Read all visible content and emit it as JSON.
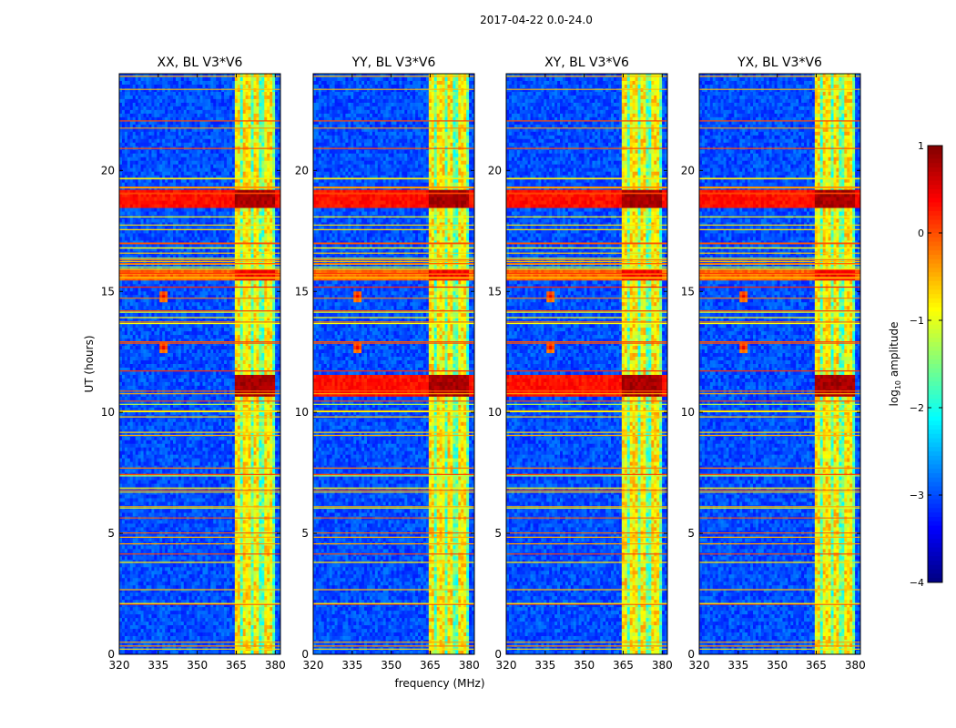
{
  "chart_data": {
    "type": "heatmap",
    "title": "2017-04-22 0.0-24.0",
    "xlabel": "frequency (MHz)",
    "ylabel": "UT (hours)",
    "xlim": [
      320,
      382
    ],
    "ylim": [
      0,
      24
    ],
    "xticks": [
      "320",
      "335",
      "350",
      "365",
      "380"
    ],
    "yticks": [
      "0",
      "5",
      "10",
      "15",
      "20"
    ],
    "colorbar": {
      "label_prefix": "log",
      "label_sub": "10",
      "label_suffix": " amplitude",
      "range": [
        -4,
        1
      ],
      "ticks": [
        "1",
        "0",
        "−1",
        "−2",
        "−3",
        "−4"
      ],
      "colormap": "jet"
    },
    "panels": [
      {
        "title": "XX, BL V3*V6",
        "pol": "XX",
        "baseline": "V3*V6"
      },
      {
        "title": "YY, BL V3*V6",
        "pol": "YY",
        "baseline": "V3*V6"
      },
      {
        "title": "XY, BL V3*V6",
        "pol": "XY",
        "baseline": "V3*V6"
      },
      {
        "title": "YX, BL V3*V6",
        "pol": "YX",
        "baseline": "V3*V6"
      }
    ],
    "features": {
      "background_log_amplitude": -3,
      "bright_band_mhz": [
        364,
        380
      ],
      "bright_band_log_amplitude": -0.8,
      "strong_rfi_ut_hours": [
        {
          "ut": [
            18.5,
            19.2
          ],
          "log_amplitude": 0.6
        },
        {
          "ut": [
            15.4,
            15.9
          ],
          "log_amplitude": 0.2
        },
        {
          "ut": [
            10.7,
            11.6
          ],
          "log_amplitude": 0.6
        }
      ],
      "narrowband_rfi_channels_mhz": [
        367,
        371,
        375,
        379.5
      ],
      "bursts": [
        {
          "freq_mhz": 337,
          "ut": 14.8
        },
        {
          "freq_mhz": 337,
          "ut": 12.7
        }
      ]
    }
  }
}
